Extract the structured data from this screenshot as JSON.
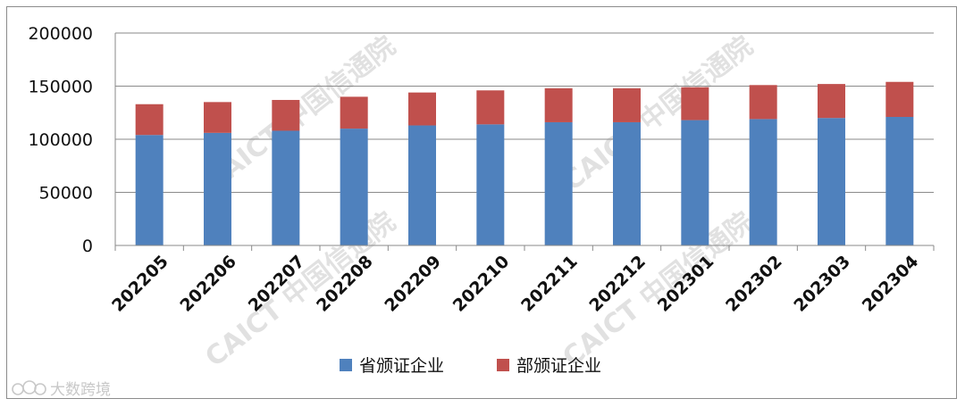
{
  "chart_data": {
    "type": "bar",
    "stacked": true,
    "categories": [
      "202205",
      "202206",
      "202207",
      "202208",
      "202209",
      "202210",
      "202211",
      "202212",
      "202301",
      "202302",
      "202303",
      "202304"
    ],
    "series": [
      {
        "name": "省颁证企业",
        "color": "#4f81bd",
        "values": [
          104000,
          106000,
          108000,
          110000,
          113000,
          114000,
          116000,
          116000,
          118000,
          119000,
          120000,
          121000
        ]
      },
      {
        "name": "部颁证企业",
        "color": "#c0504d",
        "values": [
          29000,
          29000,
          29000,
          30000,
          31000,
          32000,
          32000,
          32000,
          31000,
          32000,
          32000,
          33000
        ]
      }
    ],
    "ylim": [
      0,
      200000
    ],
    "yticks": [
      "0",
      "50000",
      "100000",
      "150000",
      "200000"
    ],
    "grid": true,
    "legend_position": "bottom"
  },
  "watermark": {
    "text": "CAICT 中国信通院",
    "color": "#d8d8d8"
  },
  "brand": {
    "text": "大数跨境",
    "icon": "weibo-icon"
  }
}
